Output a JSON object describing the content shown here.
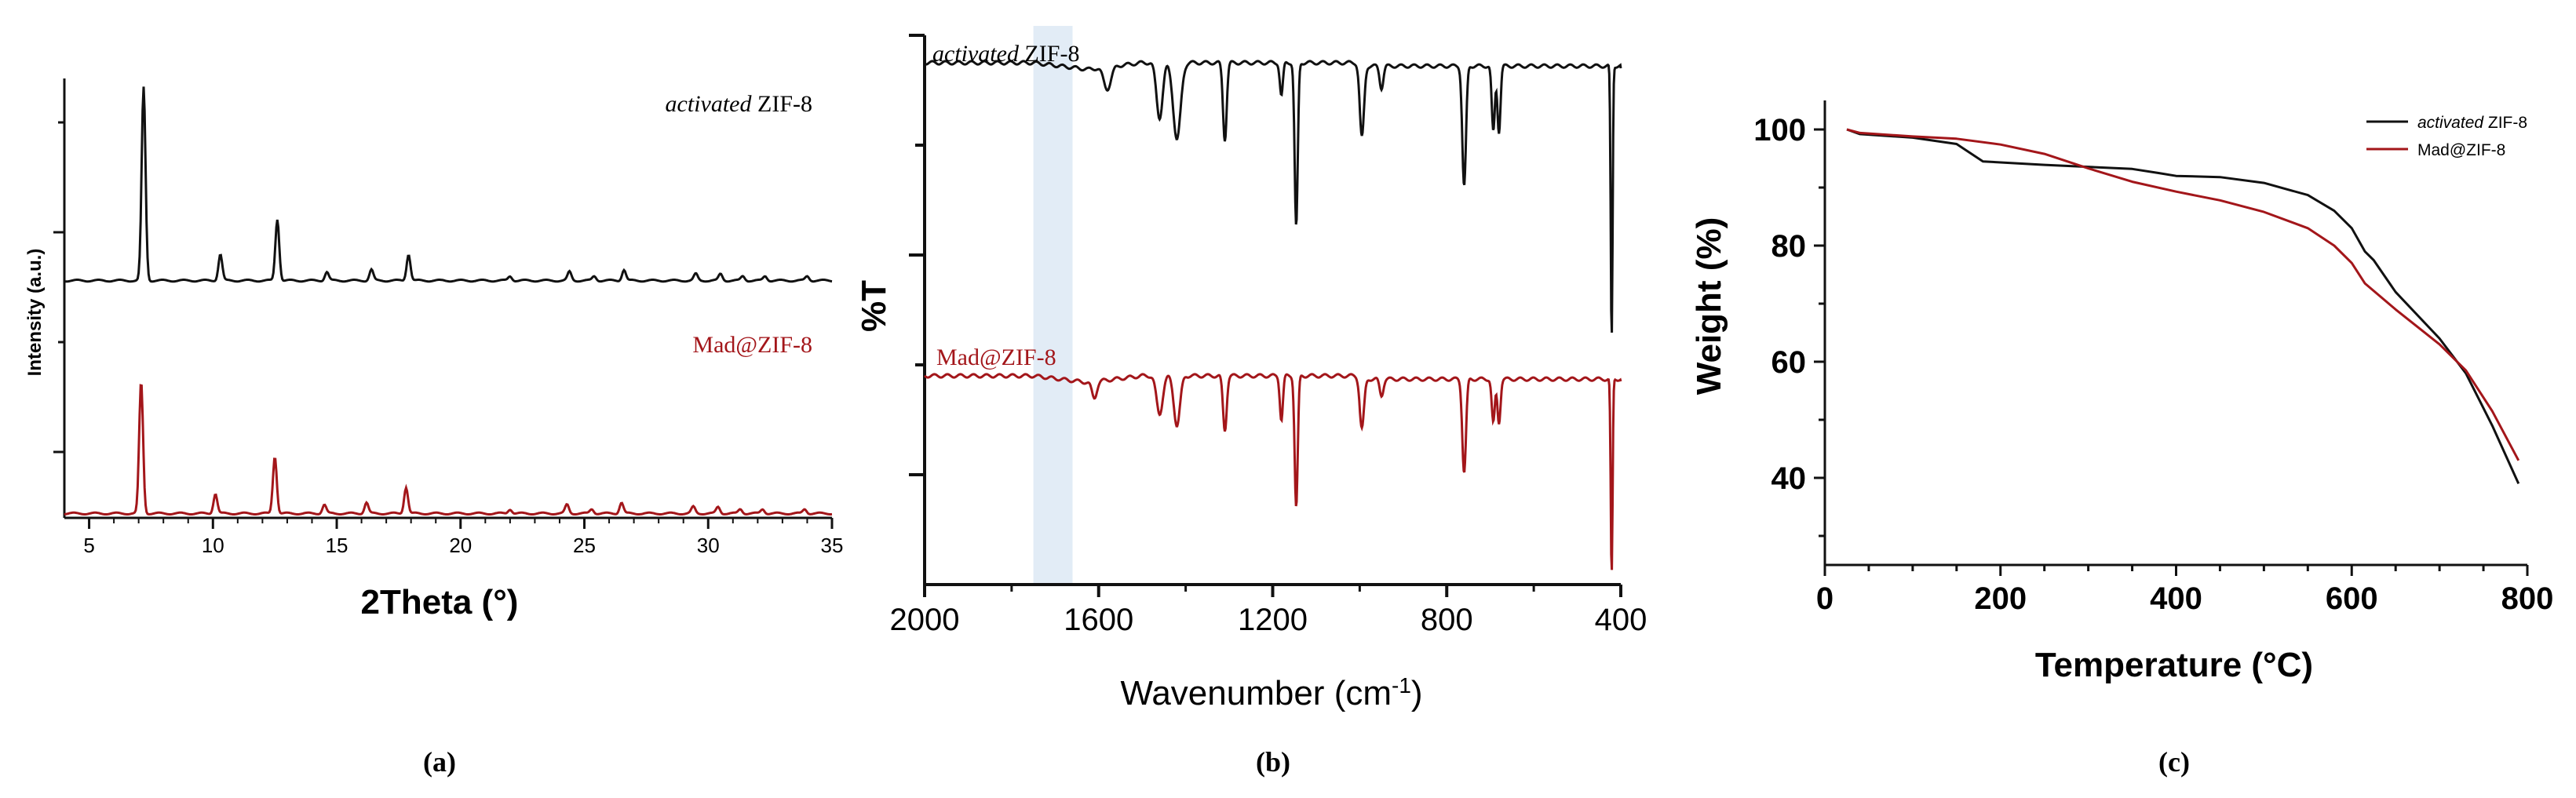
{
  "colors": {
    "black_series": "#111111",
    "red_series": "#a3161a",
    "highlight": "#dbe7f4"
  },
  "chart_data": [
    {
      "id": "a",
      "type": "line",
      "panel_label": "(a)",
      "title": "",
      "xlabel": "2Theta (°)",
      "ylabel": "Intensity (a.u.)",
      "xlim": [
        4,
        35
      ],
      "ylim": [
        0,
        2
      ],
      "x_ticks": [
        "5",
        "10",
        "15",
        "20",
        "25",
        "30",
        "35"
      ],
      "y_ticks": [
        "",
        "",
        ""
      ],
      "grid": false,
      "series": [
        {
          "name": "activated ZIF-8",
          "legend_italic": "activated",
          "legend_rest": " ZIF-8",
          "color": "#111111",
          "baseline": 1.08,
          "scale": 0.88,
          "peaks": [
            [
              7.2,
              0.88
            ],
            [
              10.3,
              0.12
            ],
            [
              12.6,
              0.28
            ],
            [
              14.6,
              0.04
            ],
            [
              16.4,
              0.05
            ],
            [
              17.9,
              0.12
            ],
            [
              22.0,
              0.02
            ],
            [
              24.4,
              0.04
            ],
            [
              25.4,
              0.02
            ],
            [
              26.6,
              0.05
            ],
            [
              29.5,
              0.03
            ],
            [
              30.5,
              0.03
            ],
            [
              31.4,
              0.02
            ],
            [
              32.3,
              0.02
            ],
            [
              34.0,
              0.02
            ]
          ]
        },
        {
          "name": "Mad@ZIF-8",
          "legend_rest": "Mad@ZIF-8",
          "color": "#a3161a",
          "baseline": 0.02,
          "scale": 0.6,
          "peaks": [
            [
              7.1,
              0.6
            ],
            [
              10.1,
              0.09
            ],
            [
              12.5,
              0.26
            ],
            [
              14.5,
              0.04
            ],
            [
              16.2,
              0.05
            ],
            [
              17.8,
              0.12
            ],
            [
              22.0,
              0.02
            ],
            [
              24.3,
              0.04
            ],
            [
              25.3,
              0.02
            ],
            [
              26.5,
              0.05
            ],
            [
              29.4,
              0.03
            ],
            [
              30.4,
              0.03
            ],
            [
              31.3,
              0.02
            ],
            [
              32.2,
              0.02
            ],
            [
              33.9,
              0.02
            ]
          ]
        }
      ]
    },
    {
      "id": "b",
      "type": "line",
      "panel_label": "(b)",
      "title": "",
      "xlabel_main": "Wavenumber (cm",
      "xlabel_sup": "-1",
      "xlabel_end": ")",
      "ylabel": "%T",
      "xlim": [
        2000,
        400
      ],
      "x_ticks": [
        2000,
        1600,
        1200,
        800,
        400
      ],
      "highlight_range": [
        1750,
        1660
      ],
      "grid": false,
      "series": [
        {
          "name": "activated ZIF-8",
          "legend_italic": "activated",
          "legend_rest": " ZIF-8",
          "color": "#111111",
          "baseline": 0.95,
          "bands": [
            [
              1580,
              0.04,
              12
            ],
            [
              1460,
              0.1,
              10
            ],
            [
              1420,
              0.14,
              12
            ],
            [
              1310,
              0.14,
              6
            ],
            [
              1180,
              0.06,
              5
            ],
            [
              1146,
              0.3,
              5
            ],
            [
              995,
              0.13,
              7
            ],
            [
              950,
              0.04,
              6
            ],
            [
              760,
              0.22,
              6
            ],
            [
              693,
              0.12,
              5
            ],
            [
              680,
              0.12,
              5
            ],
            [
              421,
              0.5,
              3
            ]
          ]
        },
        {
          "name": "Mad@ZIF-8",
          "legend_rest": "Mad@ZIF-8",
          "color": "#a3161a",
          "baseline": 0.38,
          "bands": [
            [
              1610,
              0.03,
              8
            ],
            [
              1460,
              0.07,
              10
            ],
            [
              1420,
              0.09,
              10
            ],
            [
              1310,
              0.1,
              6
            ],
            [
              1180,
              0.08,
              5
            ],
            [
              1146,
              0.24,
              5
            ],
            [
              995,
              0.09,
              7
            ],
            [
              950,
              0.03,
              6
            ],
            [
              760,
              0.17,
              6
            ],
            [
              693,
              0.08,
              5
            ],
            [
              680,
              0.08,
              5
            ],
            [
              421,
              0.36,
              3
            ]
          ]
        }
      ]
    },
    {
      "id": "c",
      "type": "line",
      "panel_label": "(c)",
      "title": "",
      "xlabel": "Temperature (°C)",
      "ylabel": "Weight (%)",
      "xlim": [
        0,
        800
      ],
      "ylim": [
        25,
        105
      ],
      "x_ticks": [
        0,
        200,
        400,
        600,
        800
      ],
      "y_ticks": [
        40,
        60,
        80,
        100
      ],
      "grid": false,
      "legend_position": "top-right",
      "series": [
        {
          "name": "activated ZIF-8",
          "legend_italic": "activated",
          "legend_rest": " ZIF-8",
          "color": "#111111",
          "x": [
            25,
            40,
            100,
            150,
            180,
            250,
            350,
            380,
            400,
            450,
            500,
            550,
            580,
            600,
            615,
            625,
            650,
            700,
            730,
            760,
            790
          ],
          "y": [
            100,
            99.2,
            98.6,
            97.5,
            94.5,
            93.9,
            93.2,
            92.5,
            92.0,
            91.8,
            90.8,
            88.7,
            86.0,
            83.0,
            79.0,
            77.5,
            72.0,
            64.0,
            58.0,
            49.0,
            39.0
          ]
        },
        {
          "name": "Mad@ZIF-8",
          "legend_rest": "Mad@ZIF-8",
          "color": "#a3161a",
          "x": [
            25,
            40,
            100,
            150,
            200,
            250,
            300,
            350,
            400,
            450,
            500,
            550,
            580,
            600,
            615,
            650,
            700,
            730,
            760,
            790
          ],
          "y": [
            100,
            99.4,
            98.8,
            98.4,
            97.4,
            95.8,
            93.3,
            91.0,
            89.3,
            87.8,
            85.8,
            83.0,
            80.0,
            77.0,
            73.5,
            69.0,
            63.0,
            58.5,
            51.5,
            43.0
          ]
        }
      ]
    }
  ]
}
